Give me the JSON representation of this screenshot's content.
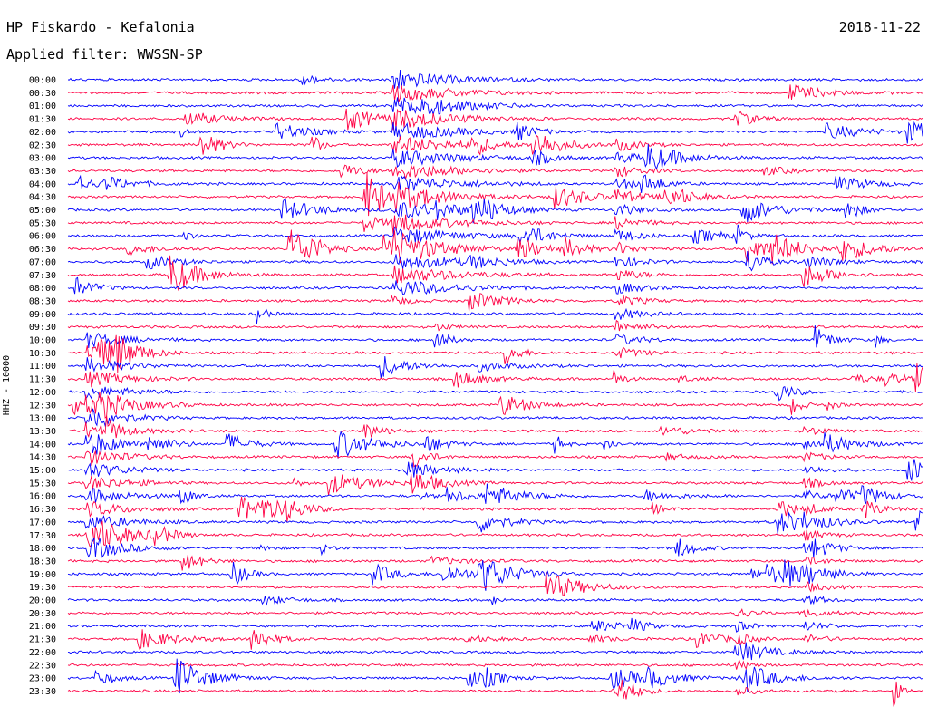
{
  "header": {
    "station": "HP Fiskardo - Kefalonia",
    "filter": "Applied filter: WWSSN-SP",
    "date": "2018-11-22"
  },
  "chart_data": {
    "type": "line",
    "title": "HP Fiskardo - Kefalonia",
    "subtitle": "Applied filter: WWSSN-SP",
    "date": "2018-11-22",
    "ylabel": "HHZ - 10000",
    "xlabel": "",
    "row_interval_minutes": 30,
    "rows": [
      "00:00",
      "00:30",
      "01:00",
      "01:30",
      "02:00",
      "02:30",
      "03:00",
      "03:30",
      "04:00",
      "04:30",
      "05:00",
      "05:30",
      "06:00",
      "06:30",
      "07:00",
      "07:30",
      "08:00",
      "08:30",
      "09:00",
      "09:30",
      "10:00",
      "10:30",
      "11:00",
      "11:30",
      "12:00",
      "12:30",
      "13:00",
      "13:30",
      "14:00",
      "14:30",
      "15:00",
      "15:30",
      "16:00",
      "16:30",
      "17:00",
      "17:30",
      "18:00",
      "18:30",
      "19:00",
      "19:30",
      "20:00",
      "20:30",
      "21:00",
      "21:30",
      "22:00",
      "22:30",
      "23:00",
      "23:30"
    ],
    "colors": [
      "#0000ff",
      "#ff0044"
    ],
    "color_cycle": "alternating rows: blue, red",
    "grid": false,
    "legend": "none"
  }
}
